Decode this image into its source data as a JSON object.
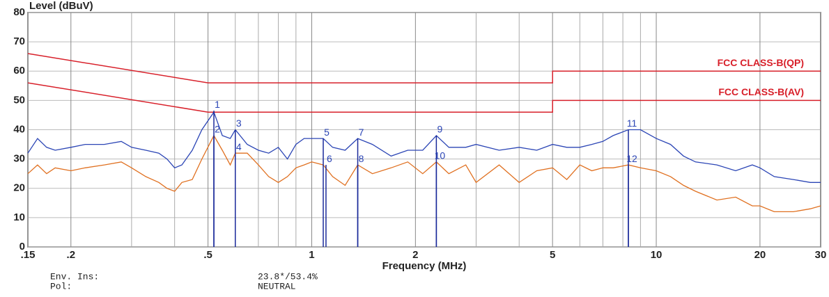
{
  "chart_data": {
    "type": "line",
    "ylabel": "Level (dBuV)",
    "xlabel": "Frequency (MHz)",
    "log_x": true,
    "grid": true,
    "xlim": [
      0.15,
      30
    ],
    "ylim": [
      0,
      80
    ],
    "yticks": [
      0,
      10,
      20,
      30,
      40,
      50,
      60,
      70,
      80
    ],
    "xticks": [
      {
        "value": 0.15,
        "label": ".15"
      },
      {
        "value": 0.2,
        "label": ".2"
      },
      {
        "value": 0.5,
        "label": ".5"
      },
      1,
      2,
      5,
      10,
      20,
      30
    ],
    "minor_xticks": [
      0.3,
      0.4,
      0.6,
      0.7,
      0.8,
      0.9,
      3,
      4,
      6,
      7,
      8,
      9
    ],
    "x": [
      0.15,
      0.16,
      0.17,
      0.18,
      0.2,
      0.22,
      0.25,
      0.28,
      0.3,
      0.33,
      0.36,
      0.38,
      0.4,
      0.42,
      0.45,
      0.48,
      0.52,
      0.55,
      0.58,
      0.6,
      0.65,
      0.7,
      0.75,
      0.8,
      0.85,
      0.9,
      0.95,
      1.0,
      1.08,
      1.15,
      1.25,
      1.36,
      1.5,
      1.7,
      1.9,
      2.1,
      2.3,
      2.5,
      2.8,
      3.0,
      3.5,
      4.0,
      4.5,
      5.0,
      5.5,
      6,
      6.5,
      7,
      7.5,
      8.3,
      9,
      10,
      11,
      12,
      13,
      15,
      17,
      19,
      20,
      22,
      25,
      28,
      30
    ],
    "series": [
      {
        "color": "#2b45b5",
        "values": [
          32,
          37,
          34,
          33,
          34,
          35,
          35,
          36,
          34,
          33,
          32,
          30,
          27,
          28,
          33,
          40,
          46,
          38,
          37,
          40,
          35,
          33,
          32,
          34,
          30,
          35,
          37,
          37,
          37,
          34,
          33,
          37,
          35,
          31,
          33,
          33,
          38,
          34,
          34,
          35,
          33,
          34,
          33,
          35,
          34,
          34,
          35,
          36,
          38,
          40,
          40,
          37,
          35,
          31,
          29,
          28,
          26,
          28,
          27,
          24,
          23,
          22,
          22
        ]
      },
      {
        "color": "#e07020",
        "values": [
          25,
          28,
          25,
          27,
          26,
          27,
          28,
          29,
          27,
          24,
          22,
          20,
          19,
          22,
          23,
          30,
          38,
          33,
          28,
          32,
          32,
          28,
          24,
          22,
          24,
          27,
          28,
          29,
          28,
          24,
          21,
          28,
          25,
          27,
          29,
          25,
          29,
          25,
          28,
          22,
          28,
          22,
          26,
          27,
          23,
          28,
          26,
          27,
          27,
          28,
          27,
          26,
          24,
          21,
          19,
          16,
          17,
          14,
          14,
          12,
          12,
          13,
          14
        ]
      }
    ],
    "limits": [
      {
        "name": "FCC CLASS-B(QP)",
        "color": "#d8202a",
        "x": [
          0.15,
          0.5,
          5,
          5,
          30
        ],
        "values": [
          66,
          56,
          56,
          60,
          60
        ]
      },
      {
        "name": "FCC CLASS-B(AV)",
        "color": "#d8202a",
        "x": [
          0.15,
          0.5,
          5,
          5,
          30
        ],
        "values": [
          56,
          46,
          46,
          50,
          50
        ]
      }
    ],
    "markers": [
      {
        "label": "1",
        "x": 0.52,
        "y": 46.5
      },
      {
        "label": "2",
        "x": 0.52,
        "y": 38
      },
      {
        "label": "3",
        "x": 0.6,
        "y": 40
      },
      {
        "label": "4",
        "x": 0.6,
        "y": 32
      },
      {
        "label": "5",
        "x": 1.08,
        "y": 37
      },
      {
        "label": "6",
        "x": 1.1,
        "y": 28
      },
      {
        "label": "7",
        "x": 1.36,
        "y": 37
      },
      {
        "label": "8",
        "x": 1.36,
        "y": 28
      },
      {
        "label": "9",
        "x": 2.3,
        "y": 38
      },
      {
        "label": "10",
        "x": 2.3,
        "y": 29
      },
      {
        "label": "11",
        "x": 8.3,
        "y": 40
      },
      {
        "label": "12",
        "x": 8.3,
        "y": 28
      }
    ],
    "footer": [
      [
        "Env. Ins:",
        "23.8*/53.4%"
      ],
      [
        "Pol:",
        "NEUTRAL"
      ]
    ]
  }
}
